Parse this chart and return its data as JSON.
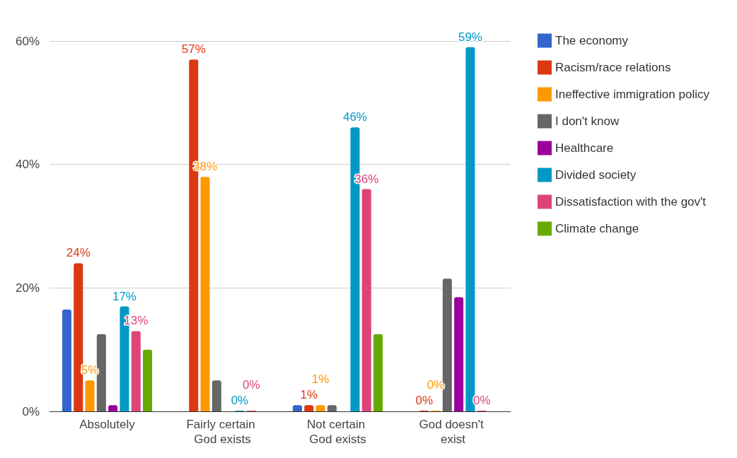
{
  "chart_data": {
    "type": "bar",
    "categories": [
      "Absolutely",
      "Fairly certain God exists",
      "Not certain God exists",
      "God doesn't exist"
    ],
    "series": [
      {
        "name": "The economy",
        "color": "#3366cc",
        "values": [
          16.5,
          null,
          1,
          null
        ],
        "value_labels": [
          null,
          null,
          null,
          null
        ]
      },
      {
        "name": "Racism/race relations",
        "color": "#dc3912",
        "values": [
          24,
          57,
          1,
          0
        ],
        "value_labels": [
          "24%",
          "57%",
          "1%",
          "0%"
        ]
      },
      {
        "name": "Ineffective immigration policy",
        "color": "#ff9900",
        "values": [
          5,
          38,
          1,
          0
        ],
        "value_labels": [
          "5%",
          "38%",
          "1%",
          "0%"
        ]
      },
      {
        "name": "I don't know",
        "color": "#666666",
        "values": [
          12.5,
          5,
          1,
          21.5
        ],
        "value_labels": [
          null,
          null,
          null,
          null
        ]
      },
      {
        "name": "Healthcare",
        "color": "#990099",
        "values": [
          1,
          null,
          null,
          18.5
        ],
        "value_labels": [
          null,
          null,
          null,
          null
        ]
      },
      {
        "name": "Divided society",
        "color": "#0099c6",
        "values": [
          17,
          0,
          46,
          59
        ],
        "value_labels": [
          "17%",
          "0%",
          "46%",
          "59%"
        ]
      },
      {
        "name": "Dissatisfaction with the gov't",
        "color": "#dd4477",
        "values": [
          13,
          0,
          36,
          0
        ],
        "value_labels": [
          "13%",
          "0%",
          "36%",
          "0%"
        ]
      },
      {
        "name": "Climate change",
        "color": "#66aa00",
        "values": [
          10,
          null,
          12.5,
          null
        ],
        "value_labels": [
          null,
          null,
          null,
          null
        ]
      }
    ],
    "ylim": [
      0,
      60
    ],
    "yticks": [
      {
        "value": 0,
        "label": "0%"
      },
      {
        "value": 20,
        "label": "20%"
      },
      {
        "value": 40,
        "label": "40%"
      },
      {
        "value": 60,
        "label": "60%"
      }
    ],
    "grid": "y",
    "legend": "top right"
  }
}
